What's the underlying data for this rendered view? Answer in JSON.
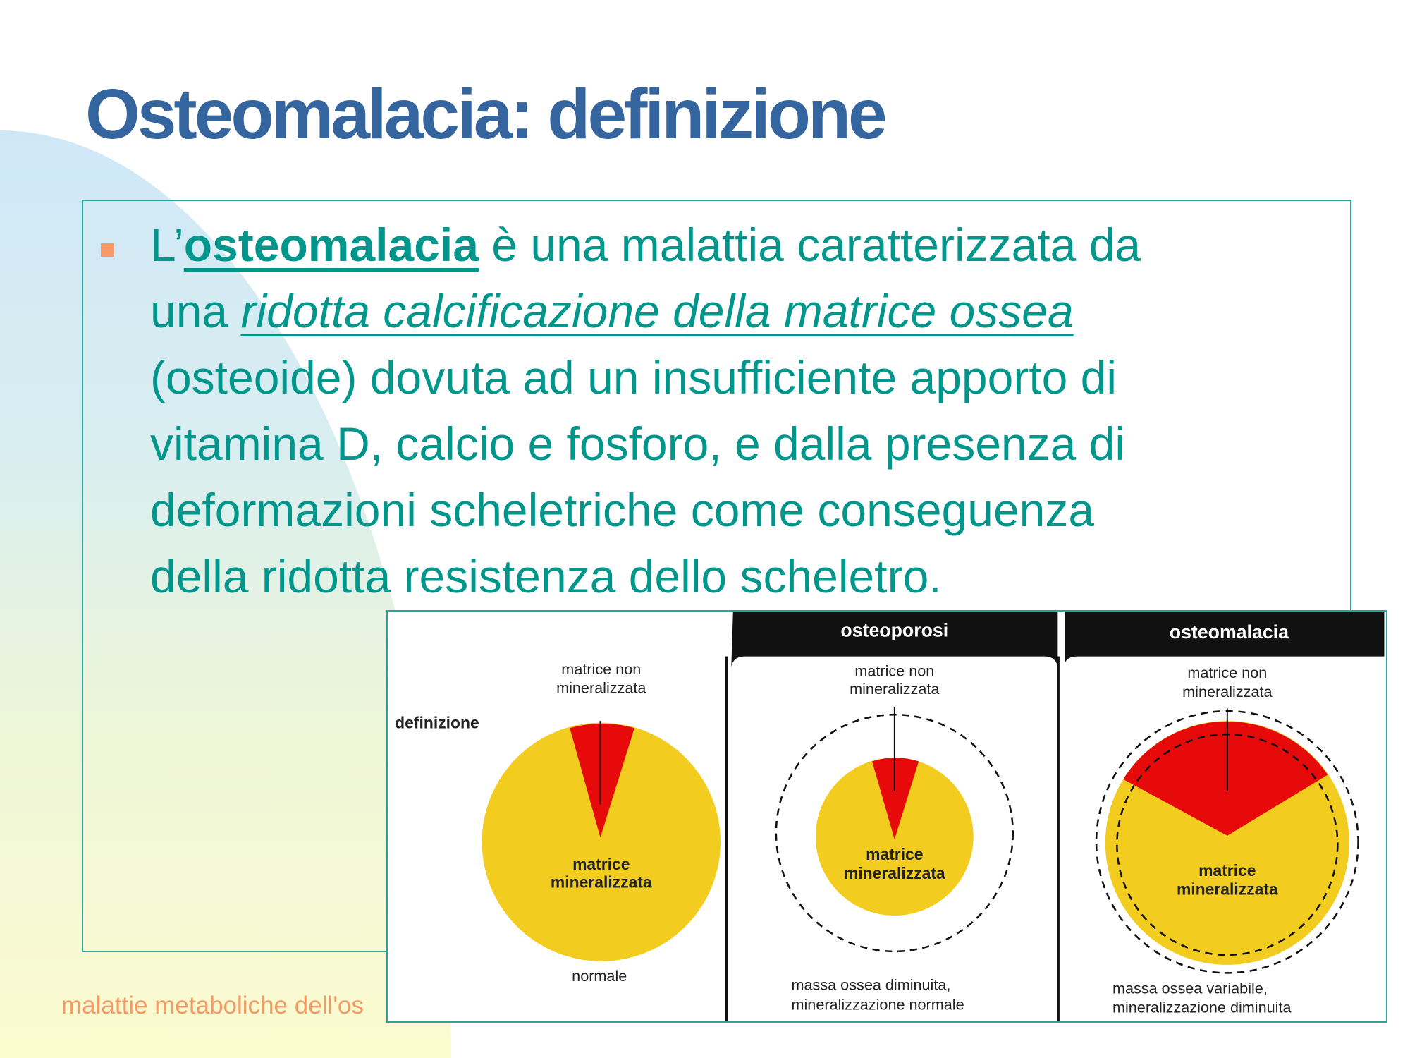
{
  "slide": {
    "title": "Osteomalacia: definizione",
    "body": {
      "line1": {
        "pre": "L’",
        "keyword": "osteomalacia",
        "post": " è una malattia caratterizzata da"
      },
      "line2": {
        "pre": "una ",
        "emphasis": "ridotta calcificazione della matrice ossea"
      },
      "line3": "(osteoide) dovuta ad un insufficiente apporto di",
      "line4": "vitamina D, calcio e fosforo, e dalla presenza di",
      "line5": "deformazioni scheletriche come conseguenza",
      "line6": "della ridotta resistenza dello scheletro."
    },
    "footer": "malattie metaboliche dell'os",
    "colors": {
      "title": "#35659e",
      "text": "#00968c",
      "bullet": "#f79a68",
      "footer": "#f39a66",
      "mineralized": "#f2cc1e",
      "unmineralized": "#e60a0a"
    }
  },
  "figure": {
    "row_label": "definizione",
    "panels": [
      {
        "header": "",
        "top_label_1": "matrice non",
        "top_label_2": "mineralizzata",
        "center_label_1": "matrice",
        "center_label_2": "mineralizzata",
        "caption_1": "normale",
        "caption_2": ""
      },
      {
        "header": "osteoporosi",
        "top_label_1": "matrice non",
        "top_label_2": "mineralizzata",
        "center_label_1": "matrice",
        "center_label_2": "mineralizzata",
        "caption_1": "massa ossea diminuita,",
        "caption_2": "mineralizzazione normale"
      },
      {
        "header": "osteomalacia",
        "top_label_1": "matrice non",
        "top_label_2": "mineralizzata",
        "center_label_1": "matrice",
        "center_label_2": "mineralizzata",
        "caption_1": "massa ossea variabile,",
        "caption_2": "mineralizzazione diminuita"
      }
    ]
  }
}
